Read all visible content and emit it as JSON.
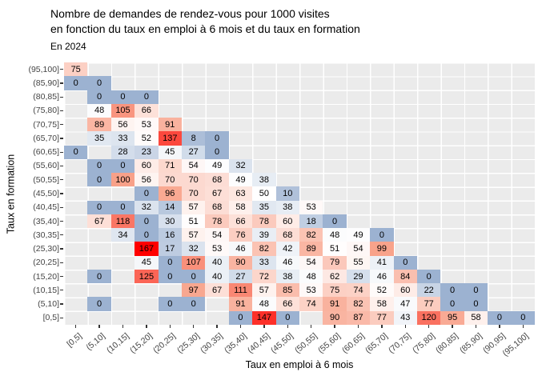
{
  "header": {
    "title_line1": "Nombre de demandes de rendez-vous pour 1000 visites",
    "title_line2": "en fonction du taux en emploi à 6 mois et du taux en formation",
    "subtitle": "En 2024"
  },
  "colors": {
    "page_bg": "#FFFFFF",
    "panel_bg": "#EBEBEB",
    "gridline": "#FFFFFF",
    "axis_text": "#444444",
    "tick_mark": "#333333",
    "title_text": "#000000",
    "cell_text": "#000000"
  },
  "chart_data": {
    "type": "heatmap",
    "title": "Nombre de demandes de rendez-vous pour 1000 visites en fonction du taux en emploi à 6 mois et du taux en formation",
    "subtitle": "En 2024",
    "xlabel": "Taux en emploi à 6 mois",
    "ylabel": "Taux en formation",
    "legend": "none",
    "grid": "on",
    "value_range": [
      0,
      167
    ],
    "color_scale": {
      "stops": [
        [
          0,
          "#9CB2D1"
        ],
        [
          50,
          "#FFFFFF"
        ],
        [
          100,
          "#F8A189"
        ],
        [
          167,
          "#FF0000"
        ]
      ]
    },
    "x_categories": [
      "[0,5]",
      "(5,10]",
      "(10,15]",
      "(15,20]",
      "(20,25]",
      "(25,30]",
      "(30,35]",
      "(35,40]",
      "(40,45]",
      "(45,50]",
      "(50,55]",
      "(55,60]",
      "(60,65]",
      "(65,70]",
      "(70,75]",
      "(75,80]",
      "(80,85]",
      "(85,90]",
      "(90,95]",
      "(95,100]"
    ],
    "y_categories_top_to_bottom": [
      "(95,100]",
      "(85,90]",
      "(80,85]",
      "(75,80]",
      "(70,75]",
      "(65,70]",
      "(60,65]",
      "(55,60]",
      "(50,55]",
      "(45,50]",
      "(40,45]",
      "(35,40]",
      "(30,35]",
      "(25,30]",
      "(20,25]",
      "(15,20]",
      "(10,15]",
      "(5,10]",
      "[0,5]"
    ],
    "rows": [
      {
        "label": "(95,100]",
        "cells": [
          [
            0,
            75
          ]
        ]
      },
      {
        "label": "(85,90]",
        "cells": [
          [
            0,
            0
          ],
          [
            1,
            0
          ]
        ]
      },
      {
        "label": "(80,85]",
        "cells": [
          [
            1,
            0
          ],
          [
            2,
            0
          ],
          [
            3,
            0
          ]
        ]
      },
      {
        "label": "(75,80]",
        "cells": [
          [
            1,
            48
          ],
          [
            2,
            105
          ],
          [
            3,
            66
          ]
        ]
      },
      {
        "label": "(70,75]",
        "cells": [
          [
            1,
            89
          ],
          [
            2,
            56
          ],
          [
            3,
            53
          ],
          [
            4,
            91
          ]
        ]
      },
      {
        "label": "(65,70]",
        "cells": [
          [
            1,
            35
          ],
          [
            2,
            33
          ],
          [
            3,
            52
          ],
          [
            4,
            137
          ],
          [
            5,
            8
          ],
          [
            6,
            0
          ]
        ]
      },
      {
        "label": "(60,65]",
        "cells": [
          [
            0,
            0
          ],
          [
            2,
            28
          ],
          [
            3,
            23
          ],
          [
            4,
            45
          ],
          [
            5,
            27
          ],
          [
            6,
            0
          ]
        ]
      },
      {
        "label": "(55,60]",
        "cells": [
          [
            1,
            0
          ],
          [
            2,
            0
          ],
          [
            3,
            60
          ],
          [
            4,
            71
          ],
          [
            5,
            54
          ],
          [
            6,
            49
          ],
          [
            7,
            32
          ]
        ]
      },
      {
        "label": "(50,55]",
        "cells": [
          [
            1,
            0
          ],
          [
            2,
            100
          ],
          [
            3,
            56
          ],
          [
            4,
            70
          ],
          [
            5,
            70
          ],
          [
            6,
            68
          ],
          [
            7,
            49
          ],
          [
            8,
            38
          ]
        ]
      },
      {
        "label": "(45,50]",
        "cells": [
          [
            3,
            0
          ],
          [
            4,
            96
          ],
          [
            5,
            70
          ],
          [
            6,
            67
          ],
          [
            7,
            63
          ],
          [
            8,
            50
          ],
          [
            9,
            10
          ]
        ]
      },
      {
        "label": "(40,45]",
        "cells": [
          [
            1,
            0
          ],
          [
            2,
            0
          ],
          [
            3,
            32
          ],
          [
            4,
            14
          ],
          [
            5,
            57
          ],
          [
            6,
            68
          ],
          [
            7,
            58
          ],
          [
            8,
            35
          ],
          [
            9,
            38
          ],
          [
            10,
            53
          ]
        ]
      },
      {
        "label": "(35,40]",
        "cells": [
          [
            1,
            67
          ],
          [
            2,
            118
          ],
          [
            3,
            0
          ],
          [
            4,
            30
          ],
          [
            5,
            51
          ],
          [
            6,
            78
          ],
          [
            7,
            66
          ],
          [
            8,
            78
          ],
          [
            9,
            60
          ],
          [
            10,
            18
          ],
          [
            11,
            0
          ]
        ]
      },
      {
        "label": "(30,35]",
        "cells": [
          [
            2,
            34
          ],
          [
            3,
            0
          ],
          [
            4,
            16
          ],
          [
            5,
            57
          ],
          [
            6,
            54
          ],
          [
            7,
            76
          ],
          [
            8,
            39
          ],
          [
            9,
            68
          ],
          [
            10,
            82
          ],
          [
            11,
            48
          ],
          [
            12,
            49
          ],
          [
            13,
            0
          ]
        ]
      },
      {
        "label": "(25,30]",
        "cells": [
          [
            3,
            167
          ],
          [
            4,
            17
          ],
          [
            5,
            32
          ],
          [
            6,
            53
          ],
          [
            7,
            46
          ],
          [
            8,
            82
          ],
          [
            9,
            42
          ],
          [
            10,
            89
          ],
          [
            11,
            51
          ],
          [
            12,
            54
          ],
          [
            13,
            99
          ]
        ]
      },
      {
        "label": "(20,25]",
        "cells": [
          [
            3,
            45
          ],
          [
            4,
            0
          ],
          [
            5,
            107
          ],
          [
            6,
            40
          ],
          [
            7,
            90
          ],
          [
            8,
            33
          ],
          [
            9,
            46
          ],
          [
            10,
            54
          ],
          [
            11,
            79
          ],
          [
            12,
            55
          ],
          [
            13,
            41
          ],
          [
            14,
            0
          ]
        ]
      },
      {
        "label": "(15,20]",
        "cells": [
          [
            1,
            0
          ],
          [
            3,
            125
          ],
          [
            4,
            0
          ],
          [
            5,
            0
          ],
          [
            6,
            40
          ],
          [
            7,
            27
          ],
          [
            8,
            72
          ],
          [
            9,
            38
          ],
          [
            10,
            48
          ],
          [
            11,
            62
          ],
          [
            12,
            29
          ],
          [
            13,
            46
          ],
          [
            14,
            84
          ],
          [
            15,
            0
          ]
        ]
      },
      {
        "label": "(10,15]",
        "cells": [
          [
            5,
            97
          ],
          [
            6,
            67
          ],
          [
            7,
            111
          ],
          [
            8,
            57
          ],
          [
            9,
            85
          ],
          [
            10,
            53
          ],
          [
            11,
            75
          ],
          [
            12,
            74
          ],
          [
            13,
            52
          ],
          [
            14,
            60
          ],
          [
            15,
            22
          ],
          [
            16,
            0
          ],
          [
            17,
            0
          ]
        ]
      },
      {
        "label": "(5,10]",
        "cells": [
          [
            1,
            0
          ],
          [
            4,
            0
          ],
          [
            5,
            0
          ],
          [
            7,
            91
          ],
          [
            8,
            48
          ],
          [
            9,
            66
          ],
          [
            10,
            74
          ],
          [
            11,
            91
          ],
          [
            12,
            82
          ],
          [
            13,
            58
          ],
          [
            14,
            47
          ],
          [
            15,
            77
          ],
          [
            16,
            0
          ],
          [
            17,
            0
          ]
        ]
      },
      {
        "label": "[0,5]",
        "cells": [
          [
            7,
            0
          ],
          [
            8,
            147
          ],
          [
            9,
            0
          ],
          [
            11,
            90
          ],
          [
            12,
            87
          ],
          [
            13,
            77
          ],
          [
            14,
            43
          ],
          [
            15,
            120
          ],
          [
            16,
            95
          ],
          [
            17,
            58
          ],
          [
            18,
            0
          ],
          [
            19,
            0
          ]
        ]
      }
    ]
  }
}
